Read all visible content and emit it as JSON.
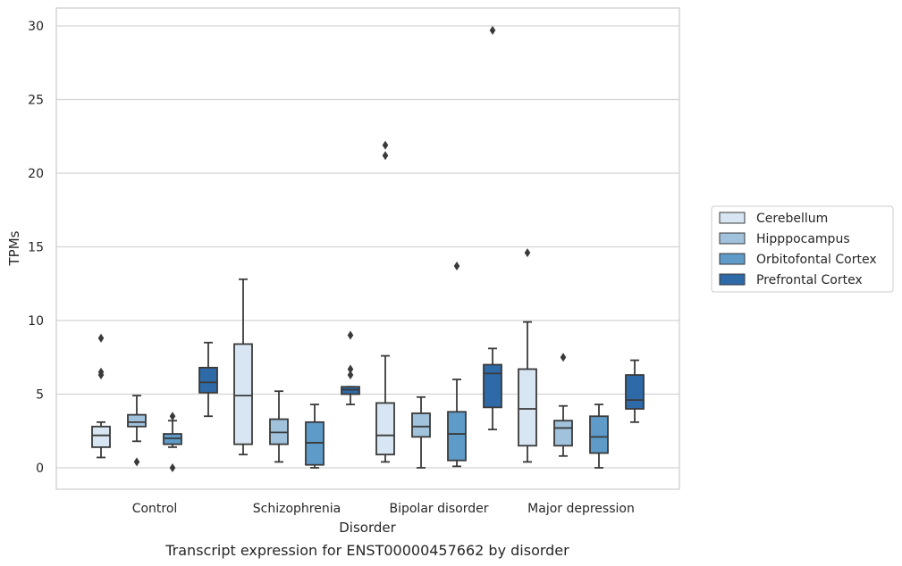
{
  "chart_data": {
    "type": "box",
    "xlabel": "Disorder",
    "ylabel": "TPMs",
    "caption": "Transcript expression for ENST00000457662 by disorder",
    "ylim": [
      -1.4,
      31.2
    ],
    "yticks": [
      0,
      5,
      10,
      15,
      20,
      25,
      30
    ],
    "grid": true,
    "legend_position": "right",
    "categories": [
      "Control",
      "Schizophrenia",
      "Bipolar disorder",
      "Major depression"
    ],
    "series": [
      {
        "name": "Cerebellum",
        "color": "#d8e5f2",
        "boxes": [
          {
            "whislo": 0.7,
            "q1": 1.4,
            "med": 2.2,
            "q3": 2.8,
            "whishi": 3.1,
            "fliers": [
              8.8,
              6.5,
              6.3
            ]
          },
          {
            "whislo": 0.9,
            "q1": 1.6,
            "med": 4.9,
            "q3": 8.4,
            "whishi": 12.8,
            "fliers": []
          },
          {
            "whislo": 0.4,
            "q1": 0.9,
            "med": 2.2,
            "q3": 4.4,
            "whishi": 7.6,
            "fliers": [
              21.2,
              21.9
            ]
          },
          {
            "whislo": 0.4,
            "q1": 1.5,
            "med": 4.0,
            "q3": 6.7,
            "whishi": 9.9,
            "fliers": [
              14.6
            ]
          }
        ]
      },
      {
        "name": "Hipppocampus",
        "color": "#a0c2dc",
        "boxes": [
          {
            "whislo": 1.8,
            "q1": 2.8,
            "med": 3.1,
            "q3": 3.6,
            "whishi": 4.9,
            "fliers": [
              0.4
            ]
          },
          {
            "whislo": 0.4,
            "q1": 1.6,
            "med": 2.4,
            "q3": 3.3,
            "whishi": 5.2,
            "fliers": []
          },
          {
            "whislo": 0.0,
            "q1": 2.1,
            "med": 2.8,
            "q3": 3.7,
            "whishi": 4.8,
            "fliers": []
          },
          {
            "whislo": 0.8,
            "q1": 1.5,
            "med": 2.7,
            "q3": 3.2,
            "whishi": 4.2,
            "fliers": [
              7.5
            ]
          }
        ]
      },
      {
        "name": "Orbitofontal Cortex",
        "color": "#5e9bc8",
        "boxes": [
          {
            "whislo": 1.4,
            "q1": 1.6,
            "med": 2.0,
            "q3": 2.3,
            "whishi": 3.2,
            "fliers": [
              3.5,
              0.0
            ]
          },
          {
            "whislo": 0.0,
            "q1": 0.2,
            "med": 1.7,
            "q3": 3.1,
            "whishi": 4.3,
            "fliers": []
          },
          {
            "whislo": 0.1,
            "q1": 0.5,
            "med": 2.3,
            "q3": 3.8,
            "whishi": 6.0,
            "fliers": [
              13.7
            ]
          },
          {
            "whislo": 0.0,
            "q1": 1.0,
            "med": 2.1,
            "q3": 3.5,
            "whishi": 4.3,
            "fliers": []
          }
        ]
      },
      {
        "name": "Prefrontal Cortex",
        "color": "#2e6aa8",
        "boxes": [
          {
            "whislo": 3.5,
            "q1": 5.1,
            "med": 5.8,
            "q3": 6.8,
            "whishi": 8.5,
            "fliers": []
          },
          {
            "whislo": 4.3,
            "q1": 5.0,
            "med": 5.3,
            "q3": 5.5,
            "whishi": 5.5,
            "fliers": [
              9.0,
              6.7,
              6.3
            ]
          },
          {
            "whislo": 2.6,
            "q1": 4.1,
            "med": 6.4,
            "q3": 7.0,
            "whishi": 8.1,
            "fliers": [
              29.7
            ]
          },
          {
            "whislo": 3.1,
            "q1": 4.0,
            "med": 4.6,
            "q3": 6.3,
            "whishi": 7.3,
            "fliers": []
          }
        ]
      }
    ]
  }
}
